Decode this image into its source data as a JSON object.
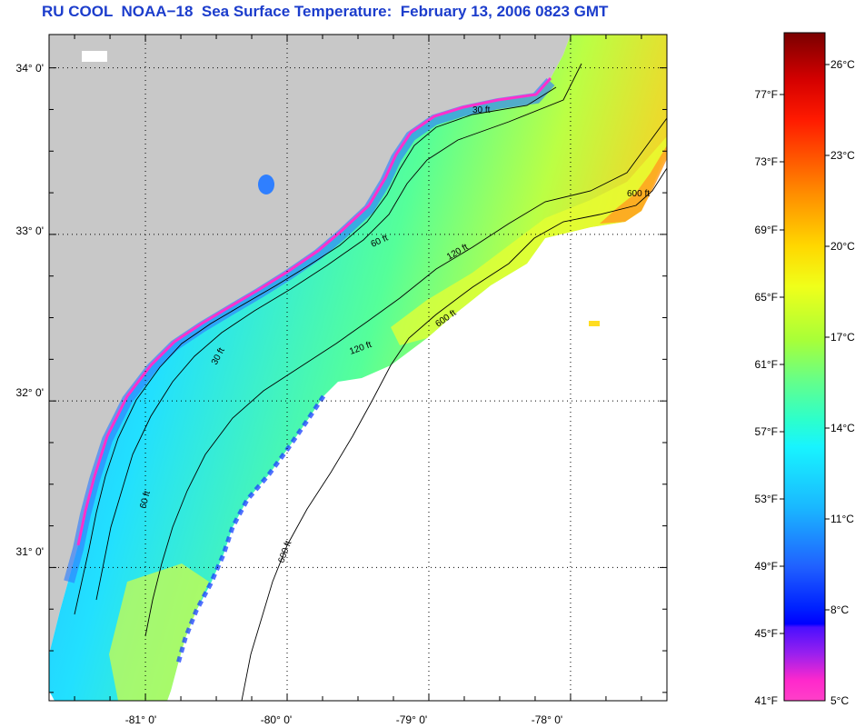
{
  "title": "RU COOL  NOAA−18  Sea Surface Temperature:  February 13, 2006 0823 GMT",
  "map": {
    "lon_range": [
      -81.68,
      -77.32
    ],
    "lat_range": [
      30.2,
      34.2
    ],
    "lat_labels": [
      "34° 0'",
      "33° 0'",
      "32° 0'",
      "31° 0'"
    ],
    "lat_values": [
      34,
      33,
      32,
      31
    ],
    "lon_labels": [
      "-81° 0'",
      "-80° 0'",
      "-79° 0'",
      "-78° 0'"
    ],
    "lon_values": [
      -81,
      -80,
      -79,
      -78
    ],
    "land_color": "#c8c8c8",
    "no_data_color": "#ffffff",
    "grid": "dotted",
    "isobath_labels": [
      "30 ft",
      "60 ft",
      "120 ft",
      "600 ft"
    ]
  },
  "colorbar": {
    "fahrenheit_labels": [
      "77°F",
      "73°F",
      "69°F",
      "65°F",
      "61°F",
      "57°F",
      "53°F",
      "49°F",
      "45°F",
      "41°F"
    ],
    "celsius_labels": [
      "26°C",
      "23°C",
      "20°C",
      "17°C",
      "14°C",
      "11°C",
      "8°C",
      "5°C"
    ],
    "colors": [
      "#8a0000",
      "#ff0000",
      "#ff6a00",
      "#ffcc00",
      "#ccff00",
      "#33ff66",
      "#00ffff",
      "#0066ff",
      "#0000ff",
      "#8000ff",
      "#ff33cc"
    ]
  }
}
